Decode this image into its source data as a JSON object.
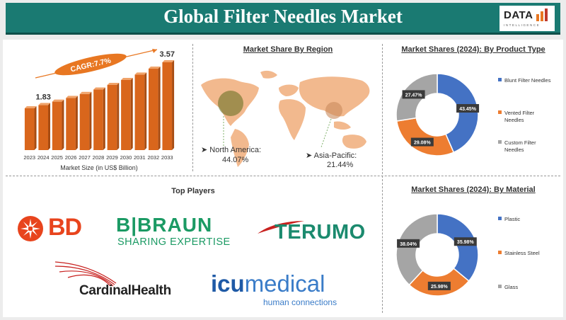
{
  "header": {
    "title": "Global Filter Needles Market"
  },
  "logo": {
    "text": "DATA",
    "sub": "INTELLIGENCE"
  },
  "market_size": {
    "start_label": "1.83",
    "end_label": "3.57",
    "cagr_label": "CAGR:7.7%",
    "xlabel": "Market Size (in US$ Billion)"
  },
  "region": {
    "title": "Market Share By Region",
    "north_america_label": "North America:",
    "north_america_value": "44.07%",
    "asia_pacific_label": "Asia-Pacific:",
    "asia_pacific_value": "21.44%"
  },
  "product_type": {
    "title": "Market Shares (2024): By Product Type"
  },
  "material": {
    "title": "Market Shares (2024): By Material"
  },
  "top_players": {
    "title": "Top Players",
    "bd": "BD",
    "braun_main": "B|BRAUN",
    "braun_tag": "SHARING EXPERTISE",
    "terumo": "TERUMO",
    "cardinal": "CardinalHealth",
    "icu": "icu",
    "icu_medical": "medical",
    "icu_tag": "human connections"
  },
  "chart_data": [
    {
      "type": "bar",
      "categories": [
        "2023",
        "2024",
        "2025",
        "2026",
        "2027",
        "2028",
        "2029",
        "2030",
        "2031",
        "2032",
        "2033"
      ],
      "values": [
        1.7,
        1.83,
        1.97,
        2.12,
        2.28,
        2.46,
        2.65,
        2.85,
        3.07,
        3.31,
        3.57
      ],
      "title": "",
      "xlabel": "Market Size (in US$ Billion)",
      "ylabel": "",
      "ylim": [
        0,
        3.8
      ],
      "annotations": [
        "1.83",
        "3.57",
        "CAGR:7.7%"
      ]
    },
    {
      "type": "pie",
      "title": "Market Shares (2024): By Product Type",
      "labels": [
        "Blunt Filter Needles",
        "Vented Filter Needles",
        "Custom Filter Needles"
      ],
      "values": [
        43.45,
        29.08,
        27.47
      ],
      "value_labels": [
        "43.45%",
        "29.08%",
        "27.47%"
      ],
      "colors": [
        "#4472c4",
        "#ed7d31",
        "#a5a5a5"
      ],
      "legend": "right"
    },
    {
      "type": "pie",
      "title": "Market Shares (2024): By Material",
      "labels": [
        "Plastic",
        "Stainless Steel",
        "Glass"
      ],
      "values": [
        35.98,
        25.98,
        38.04
      ],
      "value_labels": [
        "35.98%",
        "25.98%",
        "38.04%"
      ],
      "colors": [
        "#4472c4",
        "#ed7d31",
        "#a5a5a5"
      ],
      "legend": "right"
    }
  ]
}
